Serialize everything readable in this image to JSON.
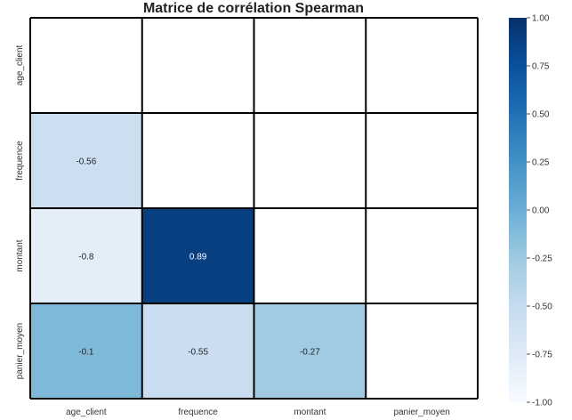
{
  "chart_data": {
    "type": "heatmap",
    "title": "Matrice de corrélation Spearman",
    "xlabel": "",
    "ylabel": "",
    "x_categories": [
      "age_client",
      "frequence",
      "montant",
      "panier_moyen"
    ],
    "y_categories": [
      "age_client",
      "frequence",
      "montant",
      "panier_moyen"
    ],
    "mask": "upper triangle including diagonal",
    "cells": [
      {
        "row": "frequence",
        "col": "age_client",
        "value": -0.56,
        "label": "-0.56"
      },
      {
        "row": "montant",
        "col": "age_client",
        "value": -0.8,
        "label": "-0.8"
      },
      {
        "row": "montant",
        "col": "frequence",
        "value": 0.89,
        "label": "0.89"
      },
      {
        "row": "panier_moyen",
        "col": "age_client",
        "value": -0.1,
        "label": "-0.1"
      },
      {
        "row": "panier_moyen",
        "col": "frequence",
        "value": -0.55,
        "label": "-0.55"
      },
      {
        "row": "panier_moyen",
        "col": "montant",
        "value": -0.27,
        "label": "-0.27"
      }
    ],
    "colorbar": {
      "colormap": "Blues",
      "range": [
        -1.0,
        1.0
      ],
      "ticks": [
        "1.00",
        "0.75",
        "0.50",
        "0.25",
        "0.00",
        "-0.25",
        "-0.50",
        "-0.75",
        "-1.00"
      ]
    },
    "colors": {
      "low": "#f7fbff",
      "high": "#08306b"
    }
  }
}
